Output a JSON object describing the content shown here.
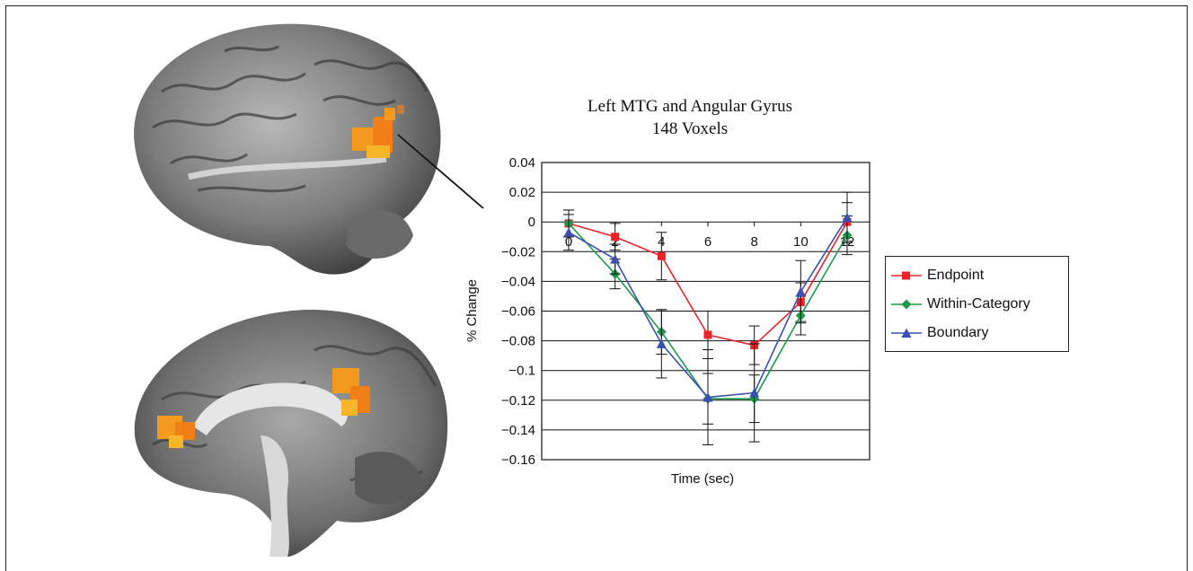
{
  "figure": {
    "images": [
      {
        "name": "lateral left-hemisphere brain render with orange activation in angular gyrus"
      },
      {
        "name": "medial sagittal brain slice with orange activation clusters"
      }
    ]
  },
  "colors": {
    "activation": "#f39a1e",
    "endpoint": "#e8232a",
    "within_category": "#1a9a4a",
    "boundary": "#3a4fb0"
  },
  "chart_data": {
    "type": "line",
    "title": [
      "Left MTG and Angular Gyrus",
      "148 Voxels"
    ],
    "xlabel": "Time (sec)",
    "ylabel": "% Change",
    "x": [
      0,
      2,
      4,
      6,
      8,
      10,
      12
    ],
    "x_ticks": [
      "0",
      "2",
      "4",
      "6",
      "8",
      "10",
      "12"
    ],
    "ylim": [
      -0.16,
      0.04
    ],
    "y_ticks": [
      "0.04",
      "0.02",
      "0",
      "−0.02",
      "−0.04",
      "−0.06",
      "−0.08",
      "−0.1",
      "−0.12",
      "−0.14",
      "−0.16"
    ],
    "y_tick_values": [
      0.04,
      0.02,
      0,
      -0.02,
      -0.04,
      -0.06,
      -0.08,
      -0.1,
      -0.12,
      -0.14,
      -0.16
    ],
    "grid": "horizontal",
    "legend_position": "right",
    "series": [
      {
        "name": "Endpoint",
        "marker": "square",
        "color": "#e8232a",
        "values": [
          -0.001,
          -0.01,
          -0.023,
          -0.076,
          -0.083,
          -0.054,
          0.0
        ],
        "error": [
          0.009,
          0.009,
          0.016,
          0.016,
          0.013,
          0.013,
          0.013
        ]
      },
      {
        "name": "Within-Category",
        "marker": "diamond",
        "color": "#1a9a4a",
        "values": [
          -0.001,
          -0.035,
          -0.074,
          -0.119,
          -0.119,
          -0.063,
          -0.009
        ],
        "error": [
          0.009,
          0.01,
          0.015,
          0.017,
          0.016,
          0.013,
          0.013
        ]
      },
      {
        "name": "Boundary",
        "marker": "triangle",
        "color": "#3a4fb0",
        "values": [
          -0.007,
          -0.025,
          -0.082,
          -0.118,
          -0.115,
          -0.047,
          0.003
        ],
        "error": [
          0.012,
          0.01,
          0.023,
          0.032,
          0.033,
          0.021,
          0.017
        ]
      }
    ]
  }
}
